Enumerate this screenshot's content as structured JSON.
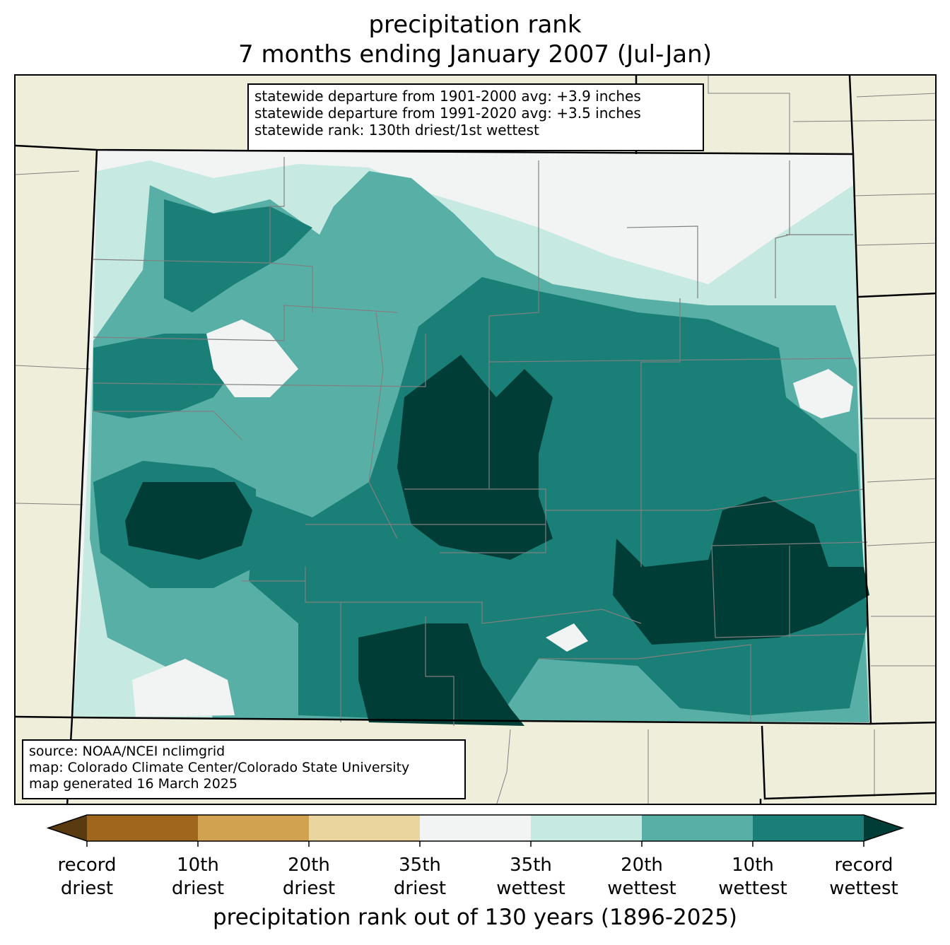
{
  "title": {
    "line1": "precipitation rank",
    "line2": "7 months ending January 2007 (Jul-Jan)"
  },
  "stats": {
    "line1": "statewide departure from 1901-2000 avg: +3.9 inches",
    "line2": "statewide departure from 1991-2020 avg: +3.5 inches",
    "line3": "statewide rank: 130th driest/1st wettest"
  },
  "source": {
    "line1": "source: NOAA/NCEI nclimgrid",
    "line2": "map: Colorado Climate Center/Colorado State University",
    "line3": "map generated 16 March 2025"
  },
  "colorbar": {
    "label": "precipitation rank out of 130 years (1896-2025)",
    "under_color": "#5a3a10",
    "over_color": "#003d36",
    "bins": [
      {
        "color": "#a0661e"
      },
      {
        "color": "#d1a24f"
      },
      {
        "color": "#ebd59e"
      },
      {
        "color": "#f2f4f3"
      },
      {
        "color": "#c6e9e2"
      },
      {
        "color": "#58afa6"
      },
      {
        "color": "#1a7f77"
      }
    ],
    "ticks": [
      {
        "line1": "record",
        "line2": "driest"
      },
      {
        "line1": "10th",
        "line2": "driest"
      },
      {
        "line1": "20th",
        "line2": "driest"
      },
      {
        "line1": "35th",
        "line2": "driest"
      },
      {
        "line1": "35th",
        "line2": "wettest"
      },
      {
        "line1": "20th",
        "line2": "wettest"
      },
      {
        "line1": "10th",
        "line2": "wettest"
      },
      {
        "line1": "record",
        "line2": "wettest"
      }
    ]
  },
  "map_colors": {
    "land": "#efeedb",
    "state_border": "#000000",
    "county_border": "#808080"
  }
}
